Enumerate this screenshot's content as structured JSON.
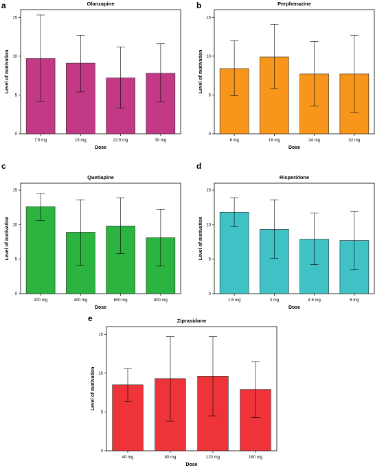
{
  "chart_data": [
    {
      "panel": "a",
      "type": "bar",
      "title": "Olanzapine",
      "xlabel": "Dose",
      "ylabel": "Level of motivation",
      "ylim": [
        0,
        16
      ],
      "yticks": [
        0,
        5,
        10,
        15
      ],
      "categories": [
        "7.5 mg",
        "15 mg",
        "22.5 mg",
        "30 mg"
      ],
      "values": [
        9.7,
        9.1,
        7.2,
        7.8
      ],
      "error_low": [
        4.2,
        5.4,
        3.3,
        4.1
      ],
      "error_high": [
        15.3,
        12.7,
        11.2,
        11.6
      ],
      "color": "#c23a85"
    },
    {
      "panel": "b",
      "type": "bar",
      "title": "Perphenazine",
      "xlabel": "Dose",
      "ylabel": "Level of motivation",
      "ylim": [
        0,
        16
      ],
      "yticks": [
        0,
        5,
        10,
        15
      ],
      "categories": [
        "8 mg",
        "16 mg",
        "24 mg",
        "32 mg"
      ],
      "values": [
        8.4,
        9.9,
        7.7,
        7.7
      ],
      "error_low": [
        4.9,
        5.8,
        3.6,
        2.8
      ],
      "error_high": [
        12.0,
        14.1,
        11.9,
        12.7
      ],
      "color": "#f7961b"
    },
    {
      "panel": "c",
      "type": "bar",
      "title": "Quetiapine",
      "xlabel": "Dose",
      "ylabel": "Level of motivation",
      "ylim": [
        0,
        16
      ],
      "yticks": [
        0,
        5,
        10,
        15
      ],
      "categories": [
        "200 mg",
        "400 mg",
        "600 mg",
        "800 mg"
      ],
      "values": [
        12.6,
        8.9,
        9.8,
        8.1
      ],
      "error_low": [
        10.6,
        4.1,
        5.8,
        4.0
      ],
      "error_high": [
        14.5,
        13.6,
        13.9,
        12.2
      ],
      "color": "#2bb540"
    },
    {
      "panel": "d",
      "type": "bar",
      "title": "Risperidone",
      "xlabel": "Dose",
      "ylabel": "Level of motivation",
      "ylim": [
        0,
        16
      ],
      "yticks": [
        0,
        5,
        10,
        15
      ],
      "categories": [
        "1.5 mg",
        "3 mg",
        "4.5 mg",
        "6 mg"
      ],
      "values": [
        11.8,
        9.3,
        7.9,
        7.7
      ],
      "error_low": [
        9.7,
        5.1,
        4.2,
        3.5
      ],
      "error_high": [
        13.9,
        13.6,
        11.7,
        11.9
      ],
      "color": "#3fc2c6"
    },
    {
      "panel": "e",
      "type": "bar",
      "title": "Ziprasidone",
      "xlabel": "Dose",
      "ylabel": "Level of motivation",
      "ylim": [
        0,
        16
      ],
      "yticks": [
        0,
        5,
        10,
        15
      ],
      "categories": [
        "40 mg",
        "80 mg",
        "120 mg",
        "160 mg"
      ],
      "values": [
        8.5,
        9.3,
        9.6,
        7.9
      ],
      "error_low": [
        6.3,
        3.8,
        4.5,
        4.3
      ],
      "error_high": [
        10.6,
        14.7,
        14.7,
        11.5
      ],
      "color": "#ee3439"
    }
  ]
}
